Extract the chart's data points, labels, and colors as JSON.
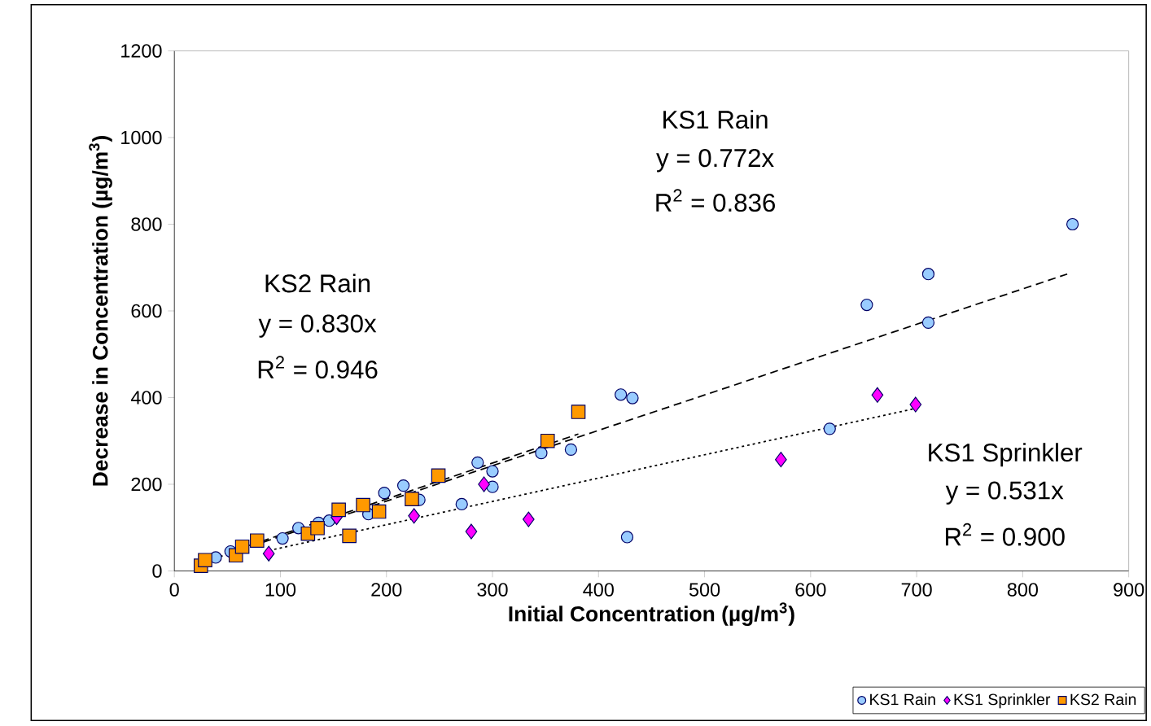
{
  "chart_data": {
    "type": "scatter",
    "xlabel": "Initial Concentration (µg/m$^{3}$)",
    "ylabel": "Decrease in Concentration (µg/m$^{3}$)",
    "xlim": [
      0,
      900
    ],
    "ylim": [
      0,
      1200
    ],
    "xticks": [
      0,
      100,
      200,
      300,
      400,
      500,
      600,
      700,
      800,
      900
    ],
    "yticks": [
      0,
      200,
      400,
      600,
      800,
      1000,
      1200
    ],
    "grid": false,
    "legend": "bottom right",
    "annotations": [
      "KS1 Rain",
      "y = 0.772x",
      "R$^{2}$ = 0.836",
      "KS2 Rain",
      "y = 0.830x",
      "R$^{2}$ = 0.946",
      "KS1 Sprinkler",
      "y = 0.531x",
      "R$^{2}$ = 0.900"
    ],
    "series": [
      {
        "type": "line",
        "color": "#000000",
        "marker": "none",
        "line_style": "dashed",
        "x": [
          27,
          842
        ],
        "values": [
          20,
          685
        ]
      },
      {
        "type": "line",
        "color": "#000000",
        "marker": "none",
        "line_style": "dotted",
        "x": [
          89,
          699
        ],
        "values": [
          47,
          375
        ]
      },
      {
        "type": "line",
        "color": "#000000",
        "marker": "none",
        "line_style": "dashed",
        "x": [
          25,
          381
        ],
        "values": [
          21,
          316
        ]
      },
      {
        "name": "KS1 Rain",
        "type": "scatter",
        "color": "#99ccff",
        "marker": "circle",
        "x": [
          39,
          53,
          102,
          117,
          136,
          146,
          183,
          198,
          216,
          231,
          271,
          286,
          300,
          300,
          346,
          374,
          421,
          432,
          427,
          618,
          653,
          711,
          711,
          847
        ],
        "values": [
          31,
          45,
          75,
          99,
          111,
          116,
          131,
          180,
          197,
          164,
          154,
          250,
          230,
          194,
          272,
          280,
          407,
          399,
          78,
          328,
          614,
          685,
          573,
          800
        ]
      },
      {
        "name": "KS1 Sprinkler",
        "type": "scatter",
        "color": "#ff00ff",
        "marker": "diamond",
        "x": [
          89,
          153,
          226,
          280,
          292,
          334,
          572,
          663,
          699
        ],
        "values": [
          40,
          124,
          127,
          91,
          200,
          119,
          257,
          406,
          384
        ]
      },
      {
        "name": "KS2 Rain",
        "type": "scatter",
        "color": "#ff9900",
        "marker": "square",
        "x": [
          25,
          29,
          58,
          64,
          78,
          126,
          135,
          155,
          165,
          178,
          193,
          224,
          249,
          352,
          381
        ],
        "values": [
          12,
          25,
          36,
          56,
          70,
          86,
          99,
          141,
          81,
          152,
          137,
          166,
          220,
          300,
          367
        ]
      }
    ]
  }
}
